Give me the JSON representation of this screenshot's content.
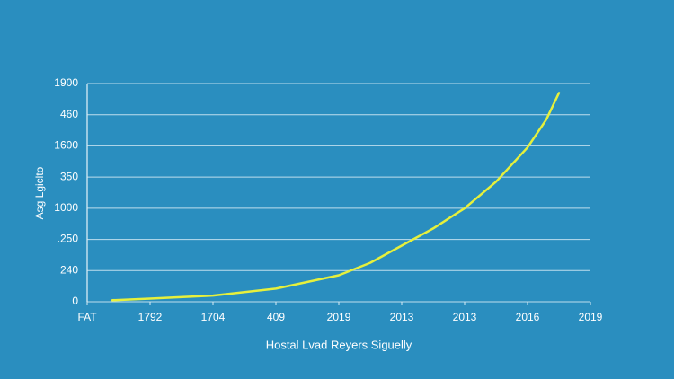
{
  "chart_data": {
    "type": "line",
    "ylabel": "Asg Lgiclto",
    "xlabel": "Hostal Lvad Reyers Siguelly",
    "color": "#e6f03c",
    "grid": true,
    "xlim": [
      0,
      8
    ],
    "xticks": [
      {
        "value": 0,
        "label": "FAT"
      },
      {
        "value": 1,
        "label": "1792"
      },
      {
        "value": 2,
        "label": "1704"
      },
      {
        "value": 3,
        "label": "409"
      },
      {
        "value": 4,
        "label": "2019"
      },
      {
        "value": 5,
        "label": "2013"
      },
      {
        "value": 6,
        "label": "2013"
      },
      {
        "value": 7,
        "label": "2016"
      },
      {
        "value": 8,
        "label": "2019"
      }
    ],
    "ylim": [
      0,
      7
    ],
    "yticks": [
      {
        "value": 0,
        "label": "0"
      },
      {
        "value": 1,
        "label": "240"
      },
      {
        "value": 2,
        "label": ".250"
      },
      {
        "value": 3,
        "label": "1000"
      },
      {
        "value": 4,
        "label": "350"
      },
      {
        "value": 5,
        "label": "1600"
      },
      {
        "value": 6,
        "label": "460"
      },
      {
        "value": 7,
        "label": "1900"
      }
    ],
    "x": [
      0.4,
      1,
      2,
      3,
      4,
      4.5,
      5,
      5.5,
      6,
      6.5,
      7,
      7.3,
      7.5
    ],
    "values": [
      0.05,
      0.1,
      0.2,
      0.42,
      0.85,
      1.25,
      1.8,
      2.35,
      3.0,
      3.85,
      4.95,
      5.85,
      6.7
    ]
  }
}
